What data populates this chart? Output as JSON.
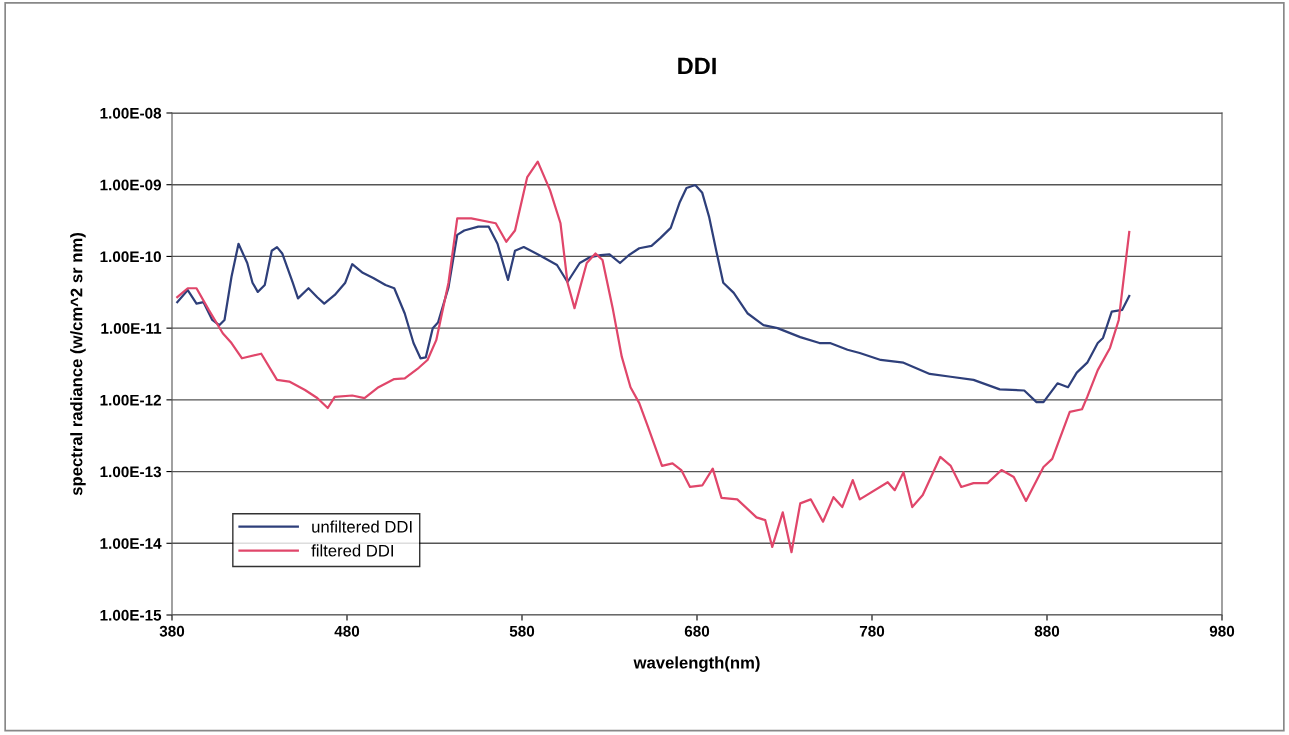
{
  "chart_data": {
    "type": "line",
    "title": "DDI",
    "xlabel": "wavelength(nm)",
    "ylabel": "spectral radiance (w/cm^2 sr nm)",
    "log": "y",
    "grid": "y",
    "legend": "bottom left",
    "marker": "none",
    "line_style": "solid",
    "xlim": [
      380,
      980
    ],
    "xticks": [
      380,
      480,
      580,
      680,
      780,
      880,
      980
    ],
    "ylim": [
      1e-15,
      1e-08
    ],
    "yticks": [
      {
        "value": 1e-15,
        "label": "1.00E-15"
      },
      {
        "value": 1e-14,
        "label": "1.00E-14"
      },
      {
        "value": 1e-13,
        "label": "1.00E-13"
      },
      {
        "value": 1e-12,
        "label": "1.00E-12"
      },
      {
        "value": 1e-11,
        "label": "1.00E-11"
      },
      {
        "value": 1e-10,
        "label": "1.00E-10"
      },
      {
        "value": 1e-09,
        "label": "1.00E-09"
      },
      {
        "value": 1e-08,
        "label": "1.00E-08"
      }
    ],
    "series": [
      {
        "name": "unfiltered DDI",
        "color": "#2e3f7a",
        "x": [
          383,
          389,
          394,
          398,
          403,
          407,
          410,
          414,
          418,
          423,
          426,
          429,
          433,
          437,
          440,
          443,
          449,
          452,
          458,
          463,
          467,
          473,
          479,
          483,
          489,
          495,
          502,
          507,
          513,
          518,
          522,
          525,
          529,
          532,
          538,
          543,
          547,
          555,
          561,
          566,
          572,
          576,
          581,
          590,
          600,
          606,
          613,
          619,
          625,
          630,
          636,
          641,
          647,
          654,
          659,
          665,
          670,
          674,
          679,
          683,
          687,
          691,
          695,
          701,
          709,
          718,
          726,
          739,
          750,
          756,
          766,
          773,
          785,
          798,
          813,
          825,
          838,
          853,
          867,
          874,
          878,
          886,
          892,
          897,
          903,
          909,
          912,
          917,
          923,
          927
        ],
        "values": [
          2.3e-11,
          3.4e-11,
          2.2e-11,
          2.3e-11,
          1.3e-11,
          1.1e-11,
          1.3e-11,
          5.2e-11,
          1.5e-10,
          8.1e-11,
          4.3e-11,
          3.2e-11,
          4e-11,
          1.2e-10,
          1.35e-10,
          1.1e-10,
          4.3e-11,
          2.6e-11,
          3.6e-11,
          2.7e-11,
          2.2e-11,
          2.9e-11,
          4.3e-11,
          7.8e-11,
          5.9e-11,
          5e-11,
          4e-11,
          3.6e-11,
          1.6e-11,
          6.2e-12,
          3.8e-12,
          3.9e-12,
          1e-11,
          1.2e-11,
          3.7e-11,
          2e-10,
          2.3e-10,
          2.6e-10,
          2.6e-10,
          1.5e-10,
          4.7e-11,
          1.2e-10,
          1.35e-10,
          1.04e-10,
          7.6e-11,
          4.4e-11,
          8.1e-11,
          9.8e-11,
          1.04e-10,
          1.07e-10,
          8.1e-11,
          1.04e-10,
          1.3e-10,
          1.4e-10,
          1.8e-10,
          2.5e-10,
          5.6e-10,
          9e-10,
          9.9e-10,
          7.7e-10,
          3.5e-10,
          1.2e-10,
          4.3e-11,
          3.1e-11,
          1.6e-11,
          1.1e-11,
          1e-11,
          7.5e-12,
          6.2e-12,
          6.2e-12,
          5e-12,
          4.5e-12,
          3.6e-12,
          3.3e-12,
          2.3e-12,
          2.1e-12,
          1.9e-12,
          1.4e-12,
          1.35e-12,
          9.3e-13,
          9.3e-13,
          1.7e-12,
          1.5e-12,
          2.4e-12,
          3.3e-12,
          6.2e-12,
          7.3e-12,
          1.7e-11,
          1.8e-11,
          2.8e-11
        ]
      },
      {
        "name": "filtered DDI",
        "color": "#e0466a",
        "x": [
          383,
          389,
          394,
          401,
          409,
          414,
          420,
          431,
          440,
          447,
          456,
          463,
          469,
          473,
          483,
          490,
          498,
          507,
          513,
          521,
          526,
          531,
          538,
          543,
          551,
          565,
          571,
          576,
          583,
          589,
          596,
          602,
          606,
          610,
          617,
          622,
          626,
          632,
          637,
          642,
          647,
          652,
          660,
          666,
          671,
          676,
          683,
          689,
          694,
          703,
          714,
          719,
          723,
          729,
          734,
          739,
          745,
          752,
          758,
          763,
          769,
          773,
          789,
          793,
          798,
          803,
          809,
          819,
          825,
          831,
          838,
          846,
          854,
          861,
          868,
          878,
          883,
          893,
          900,
          903,
          909,
          916,
          921,
          927
        ],
        "values": [
          2.7e-11,
          3.6e-11,
          3.6e-11,
          1.8e-11,
          8.5e-12,
          6.2e-12,
          3.8e-12,
          4.4e-12,
          1.9e-12,
          1.8e-12,
          1.37e-12,
          1.06e-12,
          7.7e-13,
          1.1e-12,
          1.15e-12,
          1.06e-12,
          1.5e-12,
          1.95e-12,
          2e-12,
          2.8e-12,
          3.6e-12,
          6.8e-12,
          4.3e-11,
          3.4e-10,
          3.4e-10,
          2.9e-10,
          1.6e-10,
          2.3e-10,
          1.28e-09,
          2.1e-09,
          8.4e-10,
          2.9e-10,
          4.3e-11,
          1.9e-11,
          8.1e-11,
          1.1e-10,
          8.9e-11,
          1.8e-11,
          4e-12,
          1.5e-12,
          9e-13,
          4.2e-13,
          1.2e-13,
          1.3e-13,
          1.05e-13,
          6.1e-14,
          6.4e-14,
          1.1e-13,
          4.3e-14,
          4.1e-14,
          2.3e-14,
          2.1e-14,
          8.9e-15,
          2.7e-14,
          7.5e-15,
          3.6e-14,
          4.1e-14,
          2e-14,
          4.4e-14,
          3.2e-14,
          7.6e-14,
          4.1e-14,
          7.1e-14,
          5.5e-14,
          9.8e-14,
          3.2e-14,
          4.7e-14,
          1.6e-13,
          1.2e-13,
          6.1e-14,
          6.9e-14,
          6.9e-14,
          1.05e-13,
          8.4e-14,
          3.9e-14,
          1.16e-13,
          1.5e-13,
          6.8e-13,
          7.4e-13,
          1.1e-12,
          2.6e-12,
          5.3e-12,
          1.3e-11,
          2.2e-10
        ]
      }
    ]
  }
}
